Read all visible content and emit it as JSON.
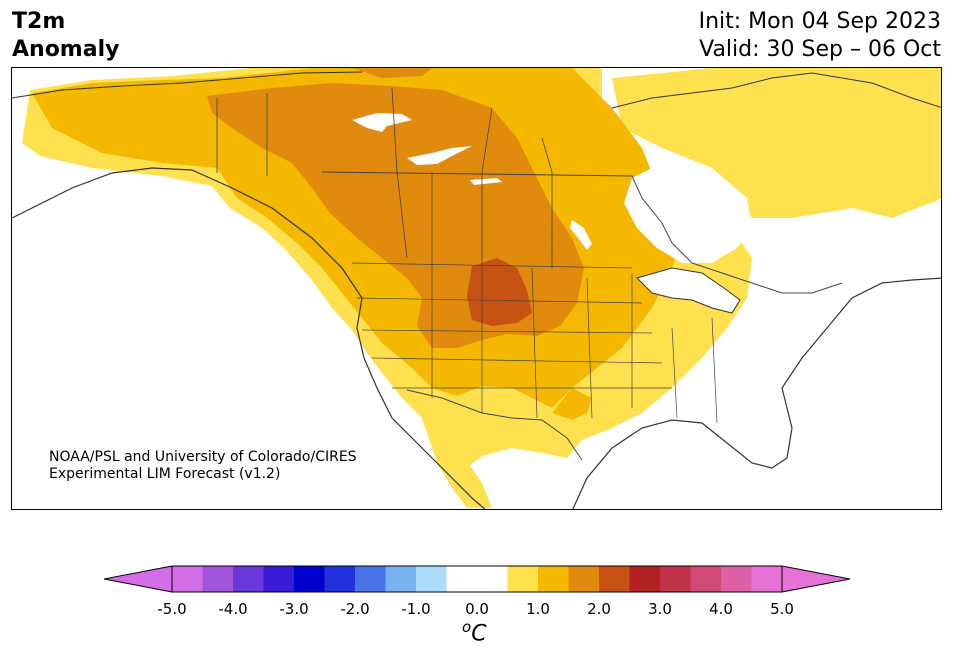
{
  "title": {
    "variable": "T2m",
    "subtitle": "Anomaly",
    "init": "Init: Mon 04 Sep 2023",
    "valid": "Valid: 30 Sep – 06 Oct"
  },
  "credit": {
    "line1": "NOAA/PSL and University of Colorado/CIRES",
    "line2": "Experimental LIM Forecast (v1.2)"
  },
  "colorbar": {
    "unit_sup": "o",
    "unit": "C",
    "ticks": [
      "-5.0",
      "-4.0",
      "-3.0",
      "-2.0",
      "-1.0",
      "0.0",
      "1.0",
      "2.0",
      "3.0",
      "4.0",
      "5.0"
    ],
    "colors": [
      "#d36ee6",
      "#a254dd",
      "#6b38dc",
      "#3a1cd4",
      "#0000cd",
      "#2233dd",
      "#4a73e5",
      "#78b2f0",
      "#addcfa",
      "#ffffff",
      "#ffffff",
      "#ffe150",
      "#f4b800",
      "#e08a0e",
      "#c65214",
      "#b22222",
      "#c0344a",
      "#d04a78",
      "#dd60a6",
      "#e672d6"
    ],
    "extend_low_color": "#d36ee6",
    "extend_high_color": "#e672d6"
  }
}
